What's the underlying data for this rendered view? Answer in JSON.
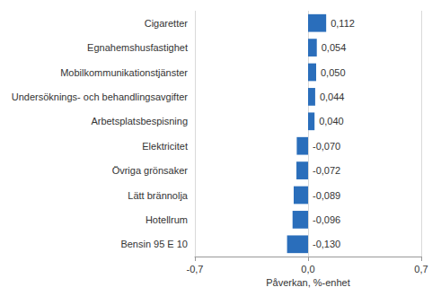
{
  "chart_data": {
    "type": "bar",
    "orientation": "horizontal",
    "categories": [
      "Cigaretter",
      "Egnahemshusfastighet",
      "Mobilkommunikationstjänster",
      "Undersöknings- och behandlingsavgifter",
      "Arbetsplatsbespisning",
      "Elektricitet",
      "Övriga grönsaker",
      "Lätt brännolja",
      "Hotellrum",
      "Bensin 95 E 10"
    ],
    "values": [
      0.112,
      0.054,
      0.05,
      0.044,
      0.04,
      -0.07,
      -0.072,
      -0.089,
      -0.096,
      -0.13
    ],
    "value_labels": [
      "0,112",
      "0,054",
      "0,050",
      "0,044",
      "0,040",
      "-0,070",
      "-0,072",
      "-0,089",
      "-0,096",
      "-0,130"
    ],
    "data_labels": true,
    "color": "#2a6ebb",
    "xlabel": "Påverkan, %-enhet",
    "xlim": [
      -0.7,
      0.7
    ],
    "xticks": [
      {
        "value": -0.7,
        "label": "-0,7"
      },
      {
        "value": 0.0,
        "label": "0,0"
      },
      {
        "value": 0.7,
        "label": "0,7"
      }
    ],
    "grid": true
  }
}
